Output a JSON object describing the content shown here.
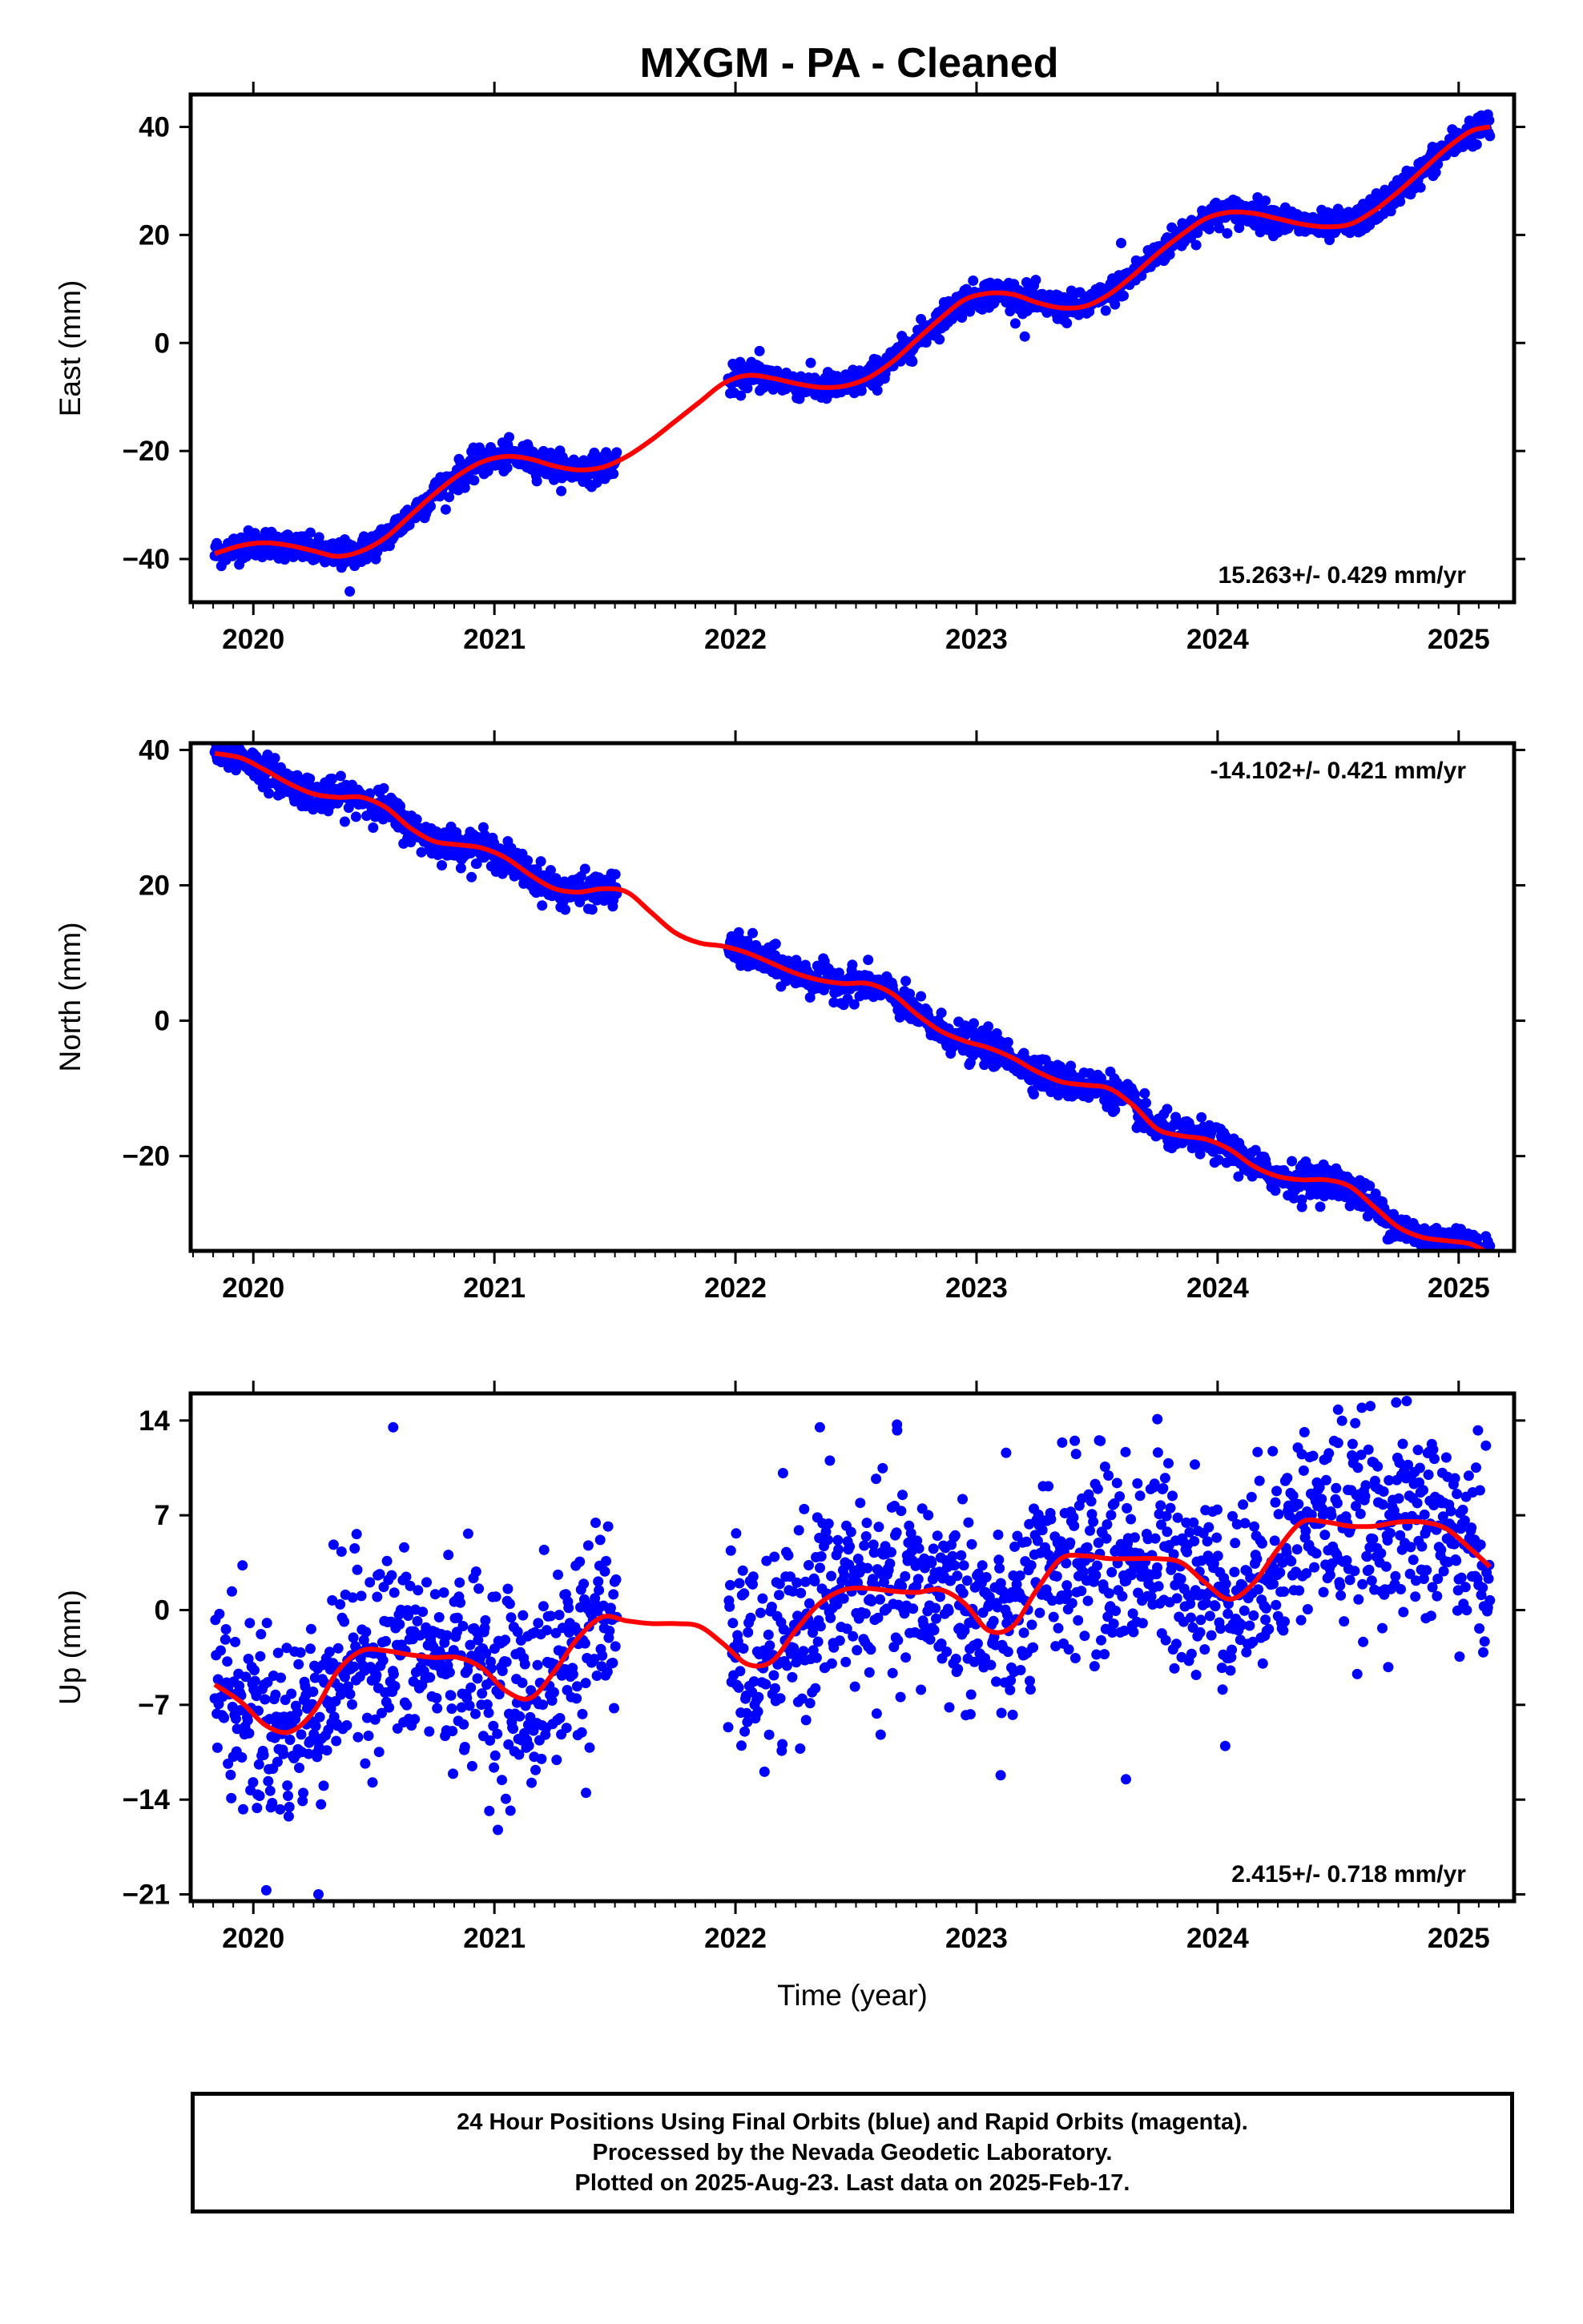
{
  "chart_data": [
    {
      "type": "scatter",
      "title": "MXGM  - PA - Cleaned",
      "ylabel": "East (mm)",
      "xlabel": "",
      "xlim": [
        2019.74,
        2025.23
      ],
      "ylim": [
        -48,
        46
      ],
      "yticks": [
        -40,
        -20,
        0,
        20,
        40
      ],
      "xticks": [
        2020,
        2021,
        2022,
        2023,
        2024,
        2025
      ],
      "rate_label": "15.263+/- 0.429 mm/yr",
      "rate_position": "bottom-right",
      "grid": false,
      "series": [
        {
          "style": "points",
          "color": "#0000ff",
          "segments": [
            [
              2019.84,
              2021.51
            ],
            [
              2021.97,
              2025.13
            ]
          ],
          "trend_ref": "model",
          "scatter_mm": 1.3,
          "outliers": [
            [
              2020.4,
              -46
            ],
            [
              2022.1,
              -1.5
            ],
            [
              2023.2,
              1.2
            ],
            [
              2023.6,
              18.5
            ]
          ]
        },
        {
          "style": "line",
          "color": "#ff0000",
          "name_ref": "model",
          "x": [
            2019.84,
            2019.95,
            2020.05,
            2020.15,
            2020.25,
            2020.35,
            2020.45,
            2020.55,
            2020.65,
            2020.75,
            2020.85,
            2020.95,
            2021.05,
            2021.15,
            2021.25,
            2021.35,
            2021.45,
            2021.55,
            2021.65,
            2021.75,
            2021.85,
            2021.95,
            2022.05,
            2022.15,
            2022.25,
            2022.35,
            2022.45,
            2022.55,
            2022.65,
            2022.75,
            2022.85,
            2022.95,
            2023.05,
            2023.15,
            2023.25,
            2023.35,
            2023.45,
            2023.55,
            2023.65,
            2023.75,
            2023.85,
            2023.95,
            2024.05,
            2024.15,
            2024.25,
            2024.35,
            2024.45,
            2024.55,
            2024.65,
            2024.75,
            2024.85,
            2024.95,
            2025.05,
            2025.13
          ],
          "y": [
            -39,
            -37.5,
            -37,
            -37.5,
            -38.5,
            -39.5,
            -38.5,
            -36,
            -32,
            -28,
            -24.5,
            -22,
            -21,
            -21.5,
            -22.8,
            -23.5,
            -23,
            -21,
            -18,
            -14.5,
            -11,
            -7.5,
            -6,
            -6.5,
            -7.5,
            -8.2,
            -8,
            -6.5,
            -3.5,
            0.5,
            4.5,
            8,
            9.2,
            9,
            7.5,
            6.5,
            6.8,
            9,
            12.5,
            16.5,
            20,
            23,
            24.2,
            24,
            23,
            22,
            21.5,
            22,
            24.5,
            28,
            32,
            36,
            39.2,
            40
          ]
        }
      ]
    },
    {
      "type": "scatter",
      "title": "",
      "ylabel": "North (mm)",
      "xlabel": "",
      "xlim": [
        2019.74,
        2025.23
      ],
      "ylim": [
        -34,
        41
      ],
      "yticks": [
        -20,
        0,
        20,
        40
      ],
      "xticks": [
        2020,
        2021,
        2022,
        2023,
        2024,
        2025
      ],
      "rate_label": "-14.102+/- 0.421 mm/yr",
      "rate_position": "top-right",
      "grid": false,
      "series": [
        {
          "style": "points",
          "color": "#0000ff",
          "segments": [
            [
              2019.84,
              2021.51
            ],
            [
              2021.97,
              2025.13
            ]
          ],
          "trend_ref": "model",
          "scatter_mm": 1.2,
          "outliers": [
            [
              2022.97,
              -6.5
            ],
            [
              2024.35,
              -27.5
            ]
          ]
        },
        {
          "style": "line",
          "color": "#ff0000",
          "name_ref": "model",
          "x": [
            2019.84,
            2019.95,
            2020.05,
            2020.15,
            2020.25,
            2020.35,
            2020.45,
            2020.55,
            2020.65,
            2020.75,
            2020.85,
            2020.95,
            2021.05,
            2021.15,
            2021.25,
            2021.35,
            2021.45,
            2021.55,
            2021.65,
            2021.75,
            2021.85,
            2021.95,
            2022.05,
            2022.15,
            2022.25,
            2022.35,
            2022.45,
            2022.55,
            2022.65,
            2022.75,
            2022.85,
            2022.95,
            2023.05,
            2023.15,
            2023.25,
            2023.35,
            2023.45,
            2023.55,
            2023.65,
            2023.75,
            2023.85,
            2023.95,
            2024.05,
            2024.15,
            2024.25,
            2024.35,
            2024.45,
            2024.55,
            2024.65,
            2024.75,
            2024.85,
            2024.95,
            2025.05,
            2025.13
          ],
          "y": [
            39.5,
            38.8,
            37,
            35,
            33.5,
            33,
            33,
            31.5,
            28.5,
            26.5,
            26,
            25.5,
            24,
            21.5,
            19.5,
            19,
            19.5,
            19,
            16,
            13,
            11.5,
            11,
            10,
            8.5,
            7,
            6,
            5.5,
            5.5,
            4,
            1,
            -1.5,
            -3,
            -4,
            -5.5,
            -7.5,
            -9,
            -9.5,
            -10,
            -12.5,
            -16,
            -17,
            -17.5,
            -19,
            -21.5,
            -23,
            -23.5,
            -23.5,
            -24.5,
            -27.5,
            -30.5,
            -32,
            -32.5,
            -33,
            -34.5
          ]
        }
      ]
    },
    {
      "type": "scatter",
      "title": "",
      "ylabel": "Up (mm)",
      "xlabel": "Time (year)",
      "xlim": [
        2019.74,
        2025.23
      ],
      "ylim": [
        -21.5,
        16
      ],
      "yticks": [
        -21,
        -14,
        -7,
        0,
        7,
        14
      ],
      "xticks": [
        2020,
        2021,
        2022,
        2023,
        2024,
        2025
      ],
      "rate_label": "2.415+/- 0.718 mm/yr",
      "rate_position": "bottom-right",
      "grid": false,
      "series": [
        {
          "style": "points",
          "color": "#0000ff",
          "segments": [
            [
              2019.84,
              2021.51
            ],
            [
              2021.97,
              2025.13
            ]
          ],
          "trend_ref": "model",
          "scatter_mm": 3.6,
          "outliers": [
            [
              2020.27,
              -21
            ],
            [
              2020.58,
              13.5
            ],
            [
              2022.35,
              13.5
            ],
            [
              2022.67,
              13.7
            ],
            [
              2023.75,
              14.1
            ],
            [
              2024.5,
              14.8
            ],
            [
              2021.38,
              -13.5
            ],
            [
              2023.62,
              -12.5
            ],
            [
              2023.1,
              -12.2
            ]
          ]
        },
        {
          "style": "line",
          "color": "#ff0000",
          "name_ref": "model",
          "x": [
            2019.84,
            2019.95,
            2020.05,
            2020.15,
            2020.25,
            2020.35,
            2020.45,
            2020.55,
            2020.65,
            2020.75,
            2020.85,
            2020.95,
            2021.05,
            2021.15,
            2021.25,
            2021.35,
            2021.45,
            2021.55,
            2021.65,
            2021.75,
            2021.85,
            2021.95,
            2022.05,
            2022.15,
            2022.25,
            2022.35,
            2022.45,
            2022.55,
            2022.65,
            2022.75,
            2022.85,
            2022.95,
            2023.05,
            2023.15,
            2023.25,
            2023.35,
            2023.45,
            2023.55,
            2023.65,
            2023.75,
            2023.85,
            2023.95,
            2024.05,
            2024.15,
            2024.25,
            2024.35,
            2024.45,
            2024.55,
            2024.65,
            2024.75,
            2024.85,
            2024.95,
            2025.05,
            2025.13
          ],
          "y": [
            -5.5,
            -6.8,
            -8.5,
            -9,
            -7.5,
            -4.5,
            -3,
            -3,
            -3.3,
            -3.5,
            -3.5,
            -4.3,
            -6,
            -6.5,
            -4.5,
            -2,
            -0.5,
            -0.8,
            -1,
            -1,
            -1.2,
            -2.5,
            -4,
            -3.8,
            -1.5,
            0.5,
            1.5,
            1.6,
            1.4,
            1.3,
            1.5,
            0.5,
            -1.5,
            -1.2,
            1.5,
            3.8,
            4,
            3.8,
            3.8,
            3.8,
            3.5,
            2,
            0.8,
            2,
            4.5,
            6.5,
            6.5,
            6.2,
            6.2,
            6.5,
            6.5,
            6,
            4.5,
            3.2
          ]
        }
      ]
    }
  ],
  "footer": {
    "line1": "24 Hour Positions Using Final Orbits (blue) and Rapid Orbits (magenta).",
    "line2": "Processed by the Nevada Geodetic Laboratory.",
    "line3": "Plotted on 2025-Aug-23. Last data on 2025-Feb-17."
  }
}
